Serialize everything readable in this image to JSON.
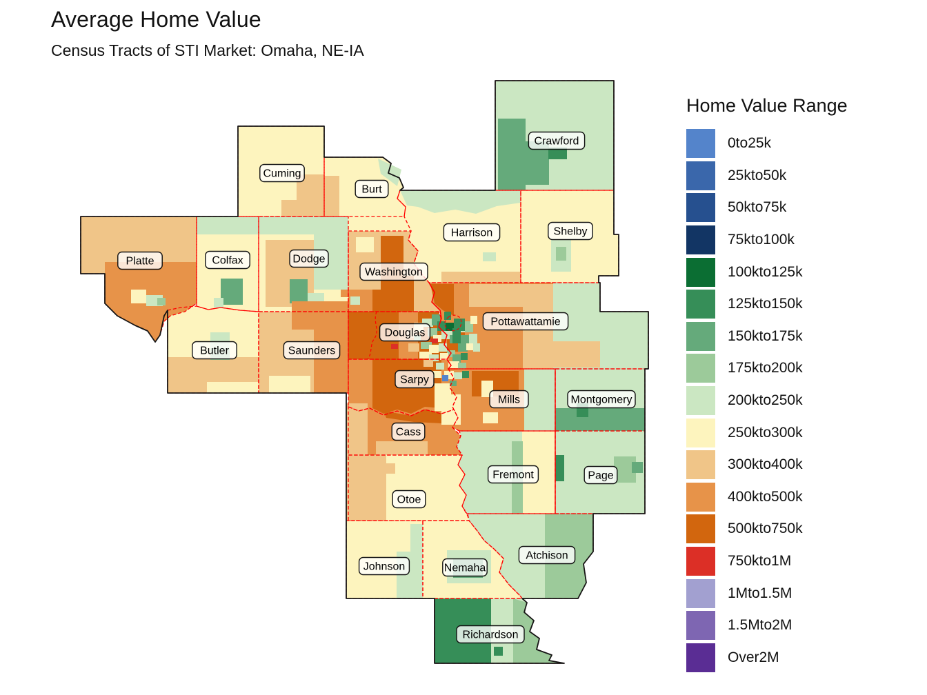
{
  "title": "Average Home Value",
  "subtitle": "Census Tracts of STI Market: Omaha, NE-IA",
  "legend": {
    "title": "Home Value Range",
    "items": [
      {
        "key": "b1",
        "label": "0to25k",
        "color": "#5484CB"
      },
      {
        "key": "b2",
        "label": "25kto50k",
        "color": "#3A67AB"
      },
      {
        "key": "b3",
        "label": "50kto75k",
        "color": "#26508F"
      },
      {
        "key": "b4",
        "label": "75kto100k",
        "color": "#123564"
      },
      {
        "key": "g1",
        "label": "100kto125k",
        "color": "#0B6E33"
      },
      {
        "key": "g2",
        "label": "125kto150k",
        "color": "#368E58"
      },
      {
        "key": "g3",
        "label": "150kto175k",
        "color": "#65AA7B"
      },
      {
        "key": "g4",
        "label": "175kto200k",
        "color": "#9CCA9A"
      },
      {
        "key": "g5",
        "label": "200kto250k",
        "color": "#CBE7C2"
      },
      {
        "key": "y1",
        "label": "250kto300k",
        "color": "#FDF4BE"
      },
      {
        "key": "o1",
        "label": "300kto400k",
        "color": "#F0C588"
      },
      {
        "key": "o2",
        "label": "400kto500k",
        "color": "#E79349"
      },
      {
        "key": "o3",
        "label": "500kto750k",
        "color": "#D2660E"
      },
      {
        "key": "r1",
        "label": "750kto1M",
        "color": "#DC2F26"
      },
      {
        "key": "p1",
        "label": "1Mto1.5M",
        "color": "#A2A0D0"
      },
      {
        "key": "p2",
        "label": "1.5Mto2M",
        "color": "#7E66B2"
      },
      {
        "key": "p3",
        "label": "Over2M",
        "color": "#5A2D94"
      }
    ]
  },
  "map": {
    "background": "#FFFFFF",
    "border_colors": {
      "outline": "#161616",
      "county_line": "#FF0000"
    },
    "counties": [
      {
        "name": "Platte",
        "fill": "o1"
      },
      {
        "name": "Colfax",
        "fill": "y1"
      },
      {
        "name": "Dodge",
        "fill": "y1"
      },
      {
        "name": "Cuming",
        "fill": "y1"
      },
      {
        "name": "Burt",
        "fill": "y1"
      },
      {
        "name": "Washington",
        "fill": "o1"
      },
      {
        "name": "Harrison",
        "fill": "y1"
      },
      {
        "name": "Shelby",
        "fill": "y1"
      },
      {
        "name": "Crawford",
        "fill": "g5"
      },
      {
        "name": "Pottawattamie",
        "fill": "o2"
      },
      {
        "name": "Douglas",
        "fill": "o3"
      },
      {
        "name": "Sarpy",
        "fill": "o2"
      },
      {
        "name": "Saunders",
        "fill": "o1"
      },
      {
        "name": "Butler",
        "fill": "y1"
      },
      {
        "name": "Mills",
        "fill": "o2"
      },
      {
        "name": "Montgomery",
        "fill": "g5"
      },
      {
        "name": "Cass",
        "fill": "o2"
      },
      {
        "name": "Otoe",
        "fill": "y1"
      },
      {
        "name": "Fremont",
        "fill": "g5"
      },
      {
        "name": "Page",
        "fill": "g5"
      },
      {
        "name": "Johnson",
        "fill": "y1"
      },
      {
        "name": "Nemaha",
        "fill": "y1"
      },
      {
        "name": "Atchison",
        "fill": "g5"
      },
      {
        "name": "Richardson",
        "fill": "g2"
      }
    ]
  }
}
